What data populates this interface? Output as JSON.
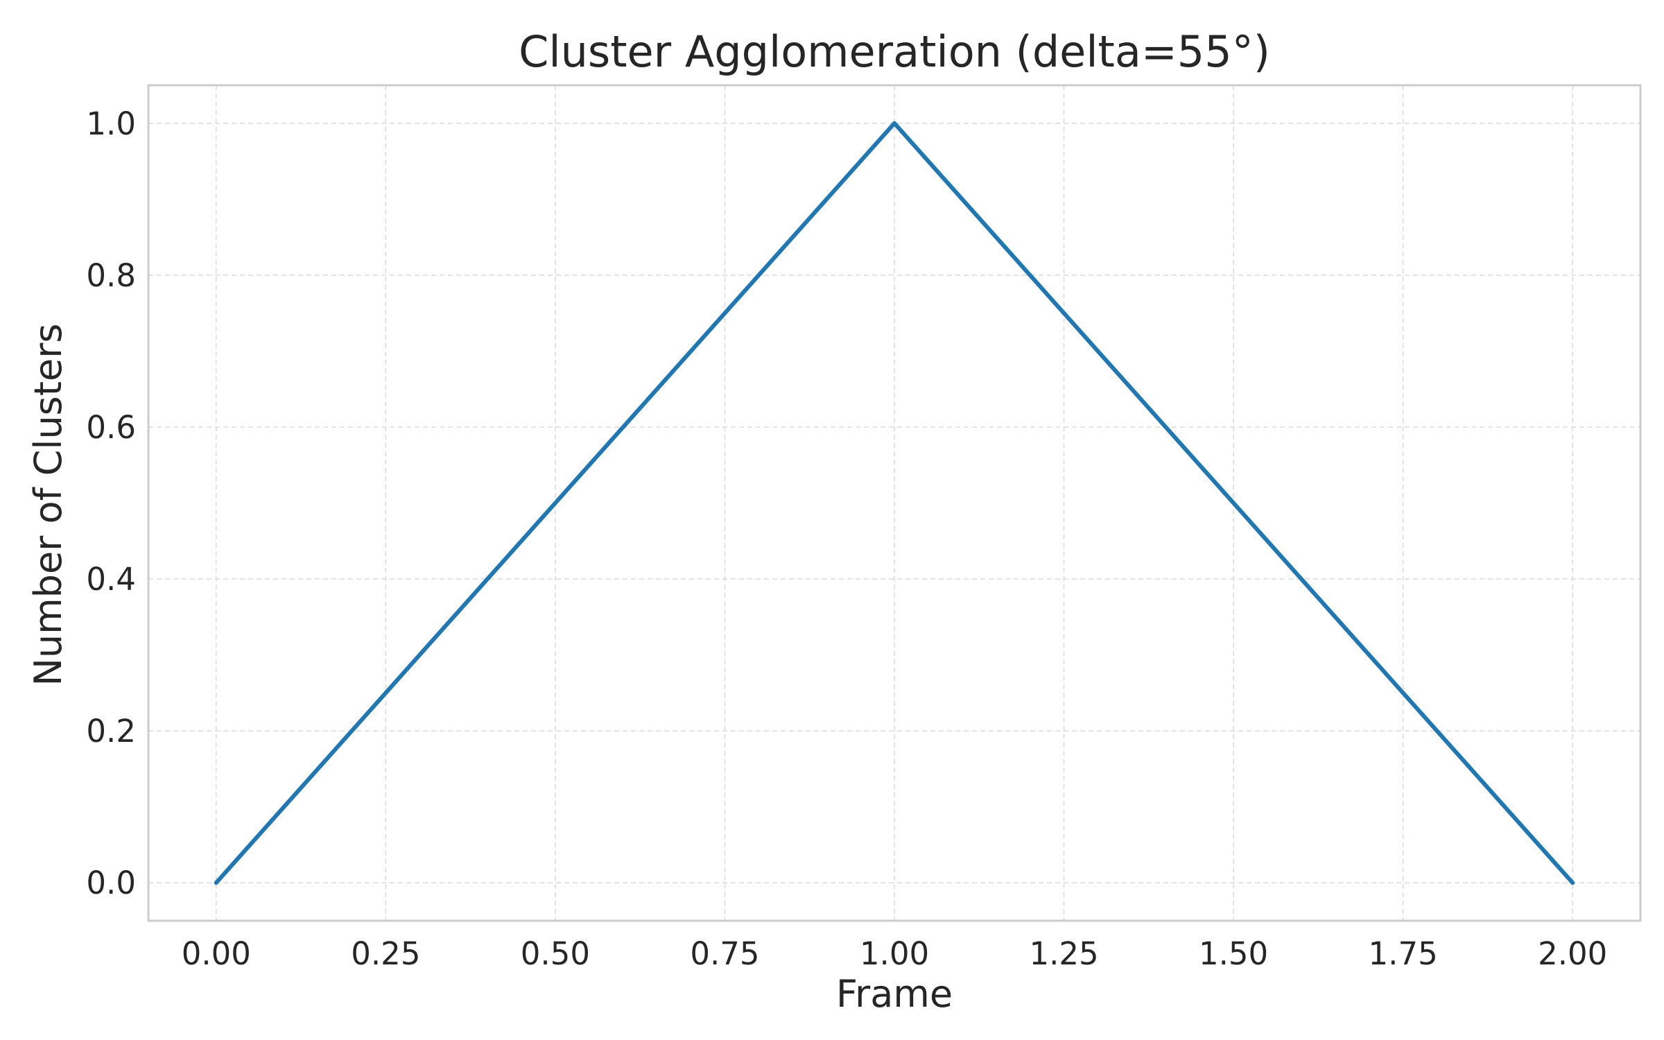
{
  "chart_data": {
    "type": "line",
    "title": "Cluster Agglomeration (delta=55°)",
    "xlabel": "Frame",
    "ylabel": "Number of Clusters",
    "x": [
      0,
      1,
      2
    ],
    "series": [
      {
        "values": [
          0,
          1,
          0
        ],
        "color": "#1f77b4"
      }
    ],
    "xlim": [
      -0.1,
      2.1
    ],
    "ylim": [
      -0.05,
      1.05
    ],
    "xticks": [
      0,
      0.25,
      0.5,
      0.75,
      1,
      1.25,
      1.5,
      1.75,
      2
    ],
    "xtick_labels": [
      "0.00",
      "0.25",
      "0.50",
      "0.75",
      "1.00",
      "1.25",
      "1.50",
      "1.75",
      "2.00"
    ],
    "yticks": [
      0,
      0.2,
      0.4,
      0.6,
      0.8,
      1
    ],
    "ytick_labels": [
      "0.0",
      "0.2",
      "0.4",
      "0.6",
      "0.8",
      "1.0"
    ],
    "grid": true,
    "grid_style": "dashed"
  }
}
